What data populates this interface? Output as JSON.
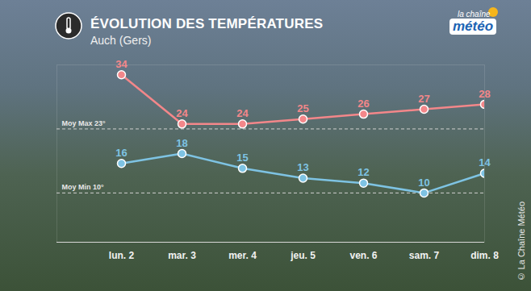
{
  "chart_data": {
    "type": "line",
    "title": "ÉVOLUTION DES TEMPÉRATURES",
    "subtitle": "Auch (Gers)",
    "logo": [
      "la chaîne",
      "météo"
    ],
    "credit": "© La Chaîne Météo",
    "categories": [
      "lun. 2",
      "mar. 3",
      "mer. 4",
      "jeu. 5",
      "ven. 6",
      "sam. 7",
      "dim. 8"
    ],
    "series": [
      {
        "color": "#f3878a",
        "values": [
          34,
          24,
          24,
          25,
          26,
          27,
          28
        ]
      },
      {
        "color": "#7ec3e3",
        "values": [
          16,
          18,
          15,
          13,
          12,
          10,
          14
        ]
      }
    ],
    "averages": [
      {
        "label": "Moy Max 23°",
        "value": 23
      },
      {
        "label": "Moy Min 10°",
        "value": 10
      }
    ],
    "ylim": [
      0,
      36
    ],
    "yticks": [],
    "tick_labels": "x",
    "data_labels": true,
    "marker": "circle",
    "grid": false
  }
}
